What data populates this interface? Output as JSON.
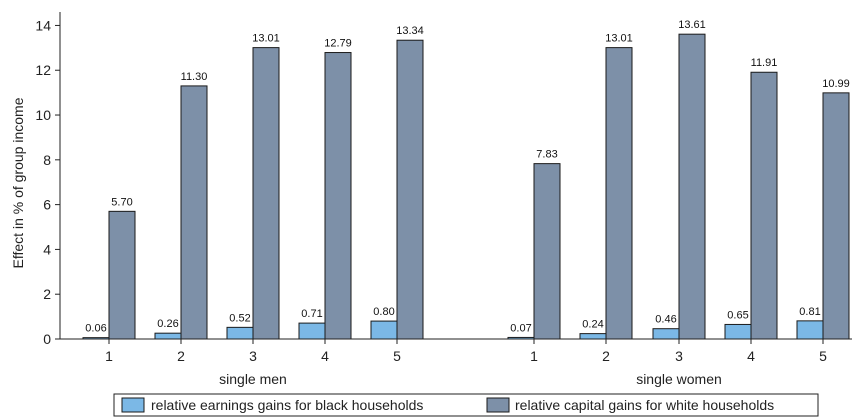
{
  "chart_data": {
    "type": "bar",
    "ylabel": "Effect in % of group income",
    "ylim": [
      0,
      14.6
    ],
    "yticks": [
      0,
      2,
      4,
      6,
      8,
      10,
      12,
      14
    ],
    "grid": false,
    "legend_position": "bottom",
    "colors": {
      "black_households": "#7bb8e6",
      "white_households": "#7d90a8"
    },
    "groups": [
      {
        "label": "single men",
        "categories": [
          "1",
          "2",
          "3",
          "4",
          "5"
        ],
        "series": [
          {
            "name": "relative earnings gains for black households",
            "values": [
              0.06,
              0.26,
              0.52,
              0.71,
              0.8
            ],
            "labels": [
              "0.06",
              "0.26",
              "0.52",
              "0.71",
              "0.80"
            ]
          },
          {
            "name": "relative capital gains for white households",
            "values": [
              5.7,
              11.3,
              13.01,
              12.79,
              13.34
            ],
            "labels": [
              "5.70",
              "11.30",
              "13.01",
              "12.79",
              "13.34"
            ]
          }
        ]
      },
      {
        "label": "single women",
        "categories": [
          "1",
          "2",
          "3",
          "4",
          "5"
        ],
        "series": [
          {
            "name": "relative earnings gains for black households",
            "values": [
              0.07,
              0.24,
              0.46,
              0.65,
              0.81
            ],
            "labels": [
              "0.07",
              "0.24",
              "0.46",
              "0.65",
              "0.81"
            ]
          },
          {
            "name": "relative capital gains for white households",
            "values": [
              7.83,
              13.01,
              13.61,
              11.91,
              10.99
            ],
            "labels": [
              "7.83",
              "13.01",
              "13.61",
              "11.91",
              "10.99"
            ]
          }
        ]
      }
    ]
  }
}
